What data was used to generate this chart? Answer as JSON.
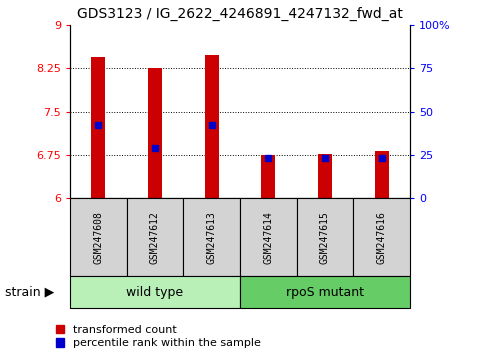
{
  "title": "GDS3123 / IG_2622_4246891_4247132_fwd_at",
  "samples": [
    "GSM247608",
    "GSM247612",
    "GSM247613",
    "GSM247614",
    "GSM247615",
    "GSM247616"
  ],
  "transformed_counts": [
    8.45,
    8.25,
    8.47,
    6.75,
    6.76,
    6.82
  ],
  "percentile_ranks_left": [
    7.27,
    6.87,
    7.27,
    6.7,
    6.7,
    6.7
  ],
  "ylim_left": [
    6.0,
    9.0
  ],
  "ylim_right": [
    0,
    100
  ],
  "yticks_left": [
    6,
    6.75,
    7.5,
    8.25,
    9
  ],
  "yticks_right": [
    0,
    25,
    50,
    75,
    100
  ],
  "ytick_labels_left": [
    "6",
    "6.75",
    "7.5",
    "8.25",
    "9"
  ],
  "ytick_labels_right": [
    "0",
    "25",
    "50",
    "75",
    "100%"
  ],
  "gridlines": [
    6.75,
    7.5,
    8.25
  ],
  "bar_color": "#CC0000",
  "dot_color": "#0000CC",
  "bar_width": 0.25,
  "legend_labels": [
    "transformed count",
    "percentile rank within the sample"
  ],
  "strain_label": "strain",
  "group_label_1": "wild type",
  "group_label_2": "rpoS mutant",
  "group_color_1": "#B8F0B8",
  "group_color_2": "#66CC66",
  "sample_box_color": "#D3D3D3",
  "title_fontsize": 10,
  "tick_fontsize": 8,
  "sample_fontsize": 7,
  "group_fontsize": 9,
  "legend_fontsize": 8,
  "strain_fontsize": 9,
  "n_wild": 3,
  "n_mutant": 3
}
